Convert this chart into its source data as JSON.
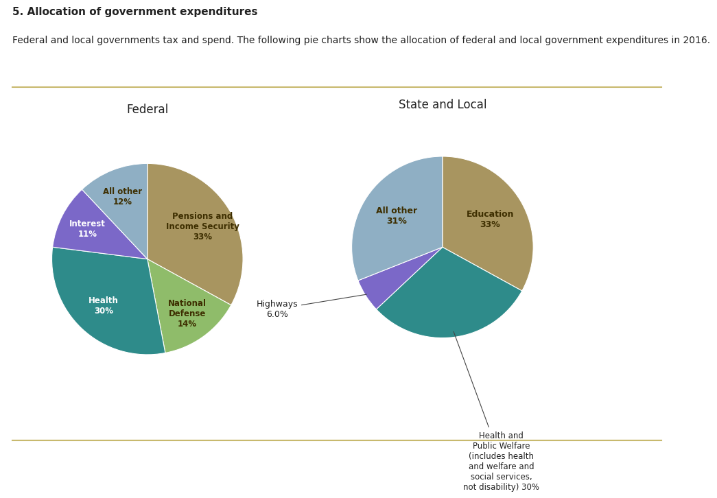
{
  "title_bold": "5. Allocation of government expenditures",
  "subtitle": "Federal and local governments tax and spend. The following pie charts show the allocation of federal and local government expenditures in 2016.",
  "federal": {
    "title": "Federal",
    "values": [
      33,
      14,
      30,
      11,
      12
    ],
    "colors": [
      "#a89560",
      "#8fbc6a",
      "#2e8b8a",
      "#7b68c8",
      "#8fafc4"
    ],
    "label_texts": [
      "Pensions and\nIncome Security\n33%",
      "National\nDefense\n14%",
      "Health\n30%",
      "Interest\n11%",
      "All other\n12%"
    ],
    "label_colors": [
      "#3d2e00",
      "#3d2e00",
      "#ffffff",
      "#ffffff",
      "#3d2e00"
    ],
    "label_radii": [
      0.57,
      0.6,
      0.57,
      0.6,
      0.6
    ],
    "startangle": 90
  },
  "state_local": {
    "title": "State and Local",
    "values": [
      33,
      30,
      6,
      31
    ],
    "colors": [
      "#a89560",
      "#2e8b8a",
      "#7b68c8",
      "#8fafc4"
    ],
    "startangle": 90
  },
  "bg_color": "#ffffff",
  "box_color": "#c8b96e",
  "title_fontsize": 11,
  "subtitle_fontsize": 10,
  "pie_title_fontsize": 12
}
